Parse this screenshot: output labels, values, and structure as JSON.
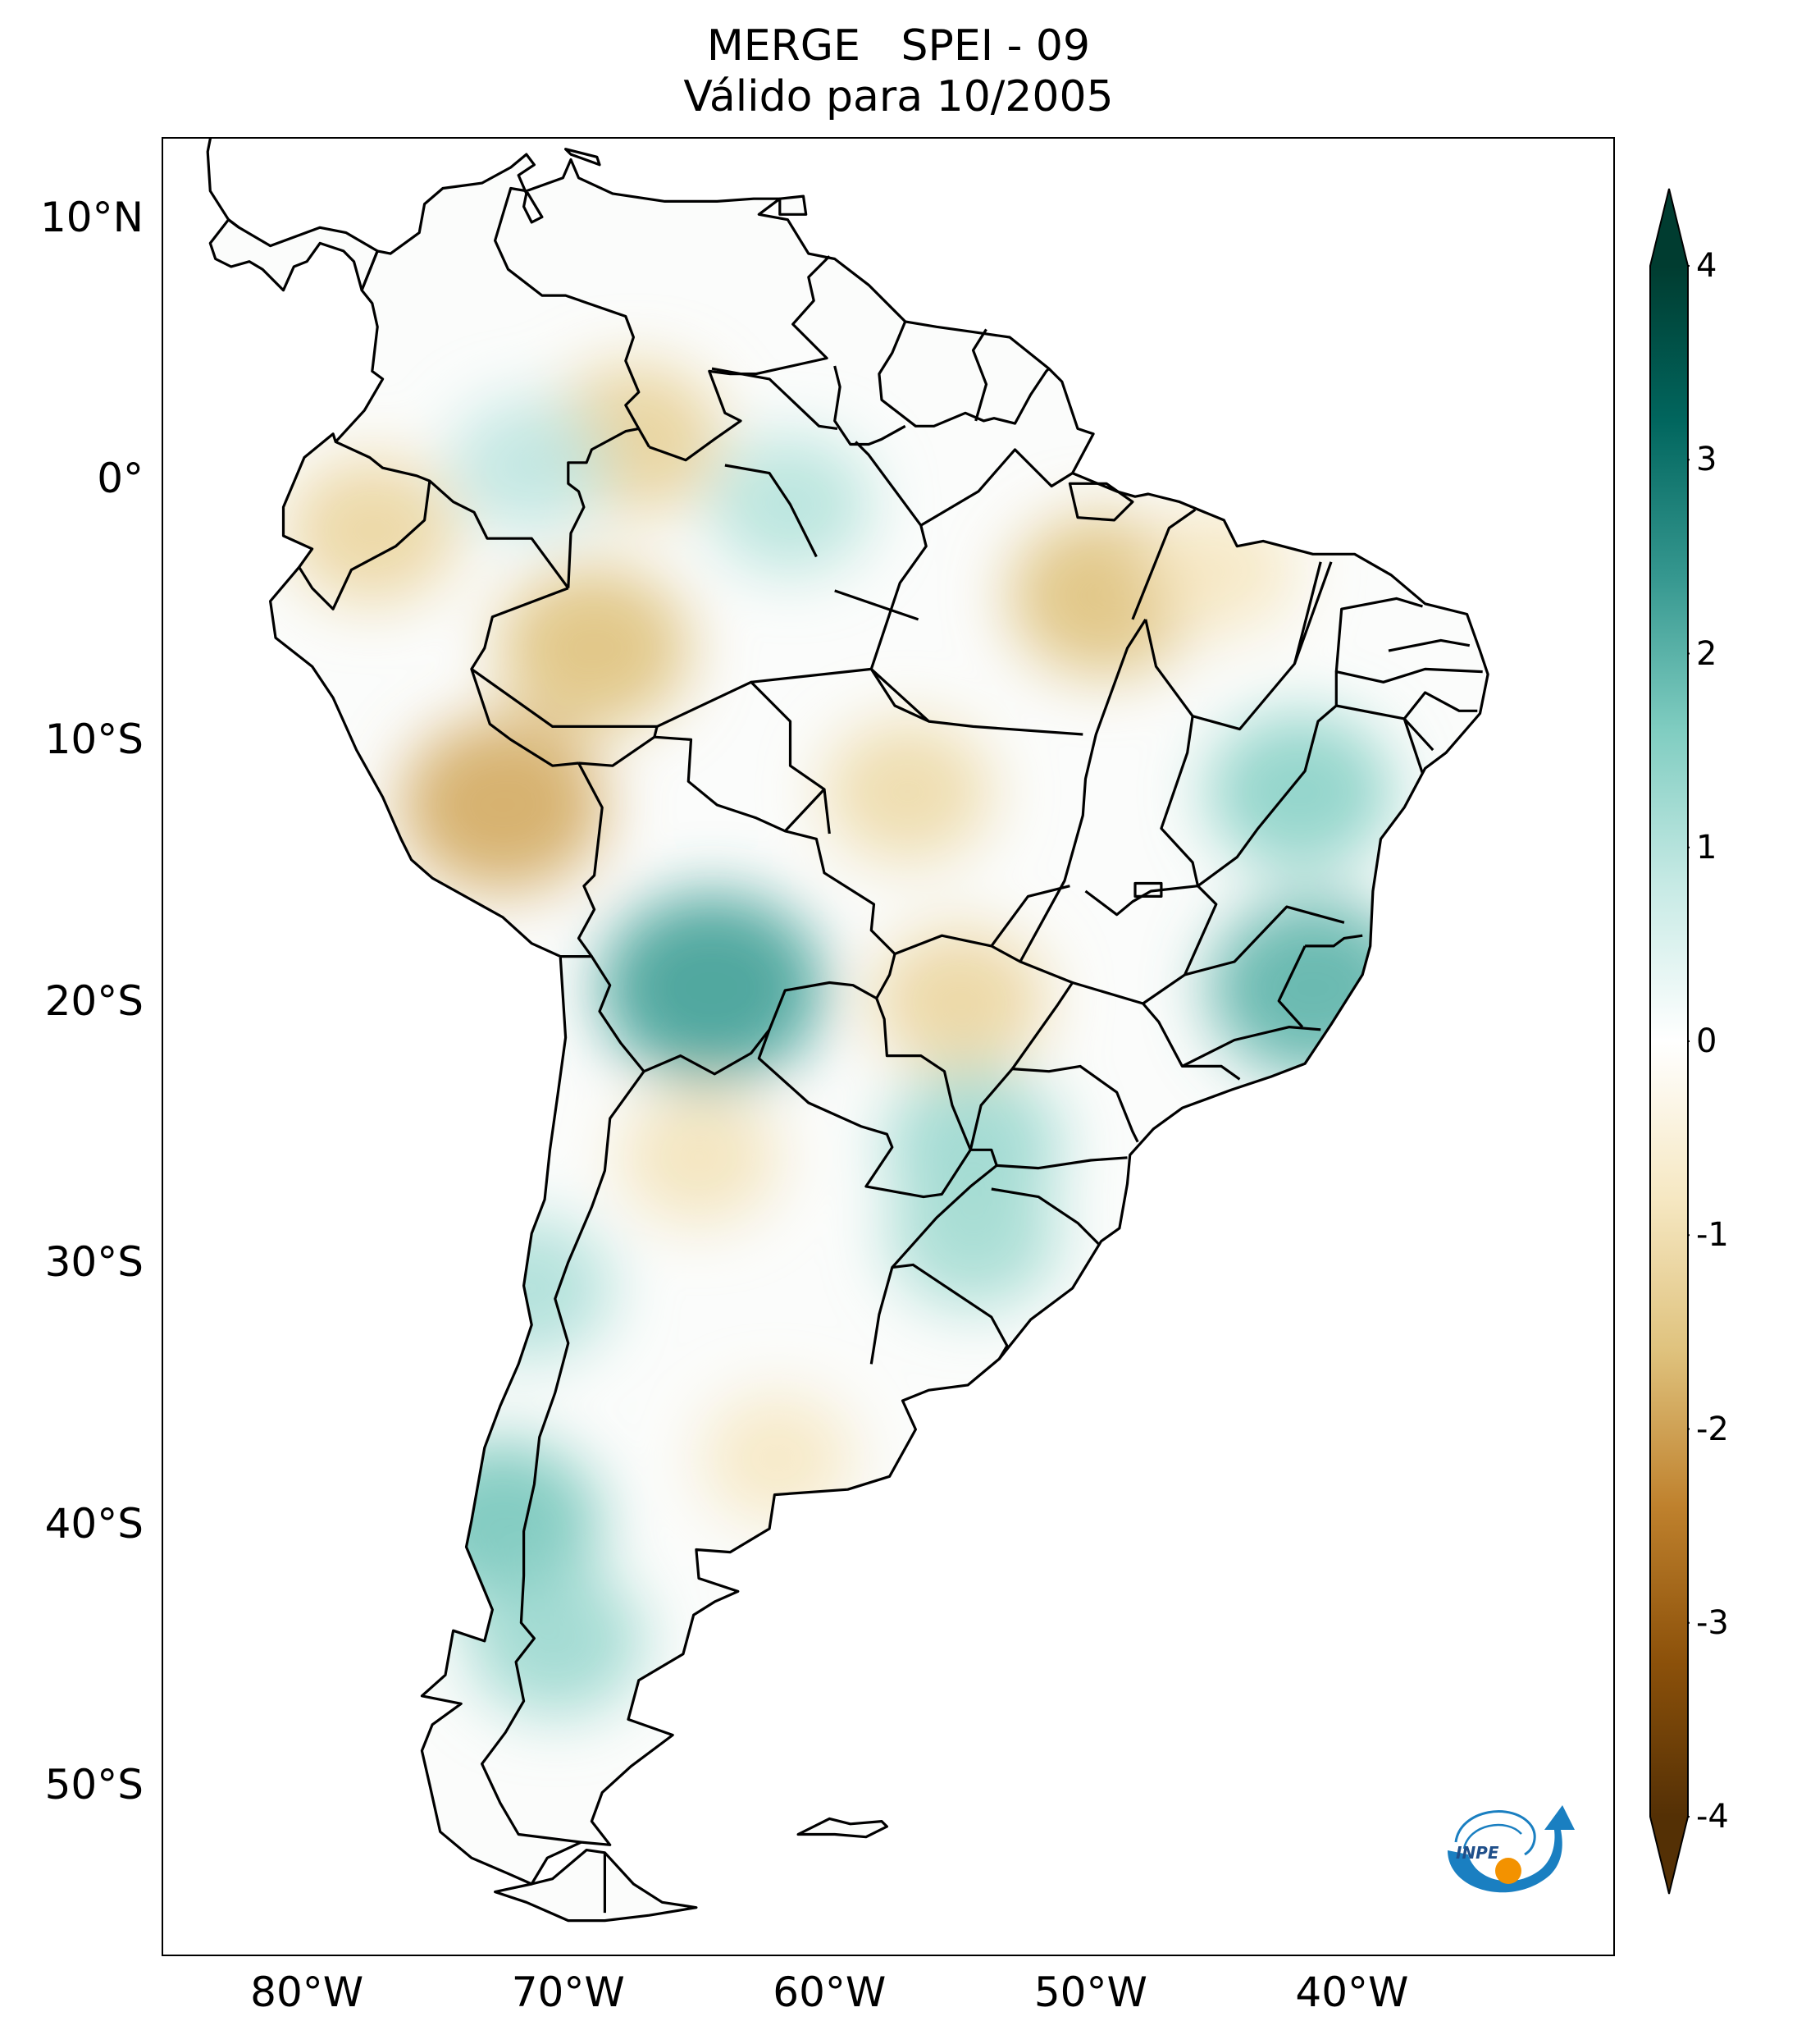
{
  "title": {
    "line1": "MERGE   SPEI - 09",
    "line2": "Válido para 10/2005"
  },
  "map": {
    "variable": "SPEI - 09",
    "source": "MERGE",
    "valid_date": "10/2005",
    "extent": {
      "lon_min": -85.5,
      "lon_max": -30.0,
      "lat_min": -56.5,
      "lat_max": 13.0
    },
    "colormap": "BrBG",
    "value_range": [
      -4,
      4
    ],
    "lat_ticks": [
      {
        "value": 10,
        "label": "10°N"
      },
      {
        "value": 0,
        "label": "0°"
      },
      {
        "value": -10,
        "label": "10°S"
      },
      {
        "value": -20,
        "label": "20°S"
      },
      {
        "value": -30,
        "label": "30°S"
      },
      {
        "value": -40,
        "label": "40°S"
      },
      {
        "value": -50,
        "label": "50°S"
      }
    ],
    "lon_ticks": [
      {
        "value": -80,
        "label": "80°W"
      },
      {
        "value": -70,
        "label": "70°W"
      },
      {
        "value": -60,
        "label": "60°W"
      },
      {
        "value": -50,
        "label": "50°W"
      },
      {
        "value": -40,
        "label": "40°W"
      }
    ],
    "dry_regions": [
      {
        "lon": -69.0,
        "lat": -6.5,
        "value": -1.6
      },
      {
        "lon": -72.5,
        "lat": -12.5,
        "value": -1.9
      },
      {
        "lon": -77.5,
        "lat": -2.0,
        "value": -1.2
      },
      {
        "lon": -49.5,
        "lat": -4.5,
        "value": -1.6
      },
      {
        "lon": -57.0,
        "lat": -12.0,
        "value": -1.1
      },
      {
        "lon": -55.0,
        "lat": -20.0,
        "value": -1.2
      },
      {
        "lon": -67.5,
        "lat": 1.5,
        "value": -1.3
      },
      {
        "lon": -65.0,
        "lat": -26.0,
        "value": -0.9
      },
      {
        "lon": -62.0,
        "lat": -37.5,
        "value": -0.8
      },
      {
        "lon": -45.0,
        "lat": -3.5,
        "value": -0.8
      }
    ],
    "wet_regions": [
      {
        "lon": -64.5,
        "lat": -19.5,
        "value": 2.3
      },
      {
        "lon": -41.5,
        "lat": -19.5,
        "value": 2.0
      },
      {
        "lon": -42.0,
        "lat": -12.0,
        "value": 1.5
      },
      {
        "lon": -72.5,
        "lat": -40.0,
        "value": 1.7
      },
      {
        "lon": -70.5,
        "lat": -44.5,
        "value": 1.3
      },
      {
        "lon": -71.5,
        "lat": -31.0,
        "value": 1.1
      },
      {
        "lon": -54.5,
        "lat": -25.5,
        "value": 1.3
      },
      {
        "lon": -54.5,
        "lat": -29.0,
        "value": 1.2
      },
      {
        "lon": -61.5,
        "lat": -1.0,
        "value": 1.0
      },
      {
        "lon": -71.5,
        "lat": 0.5,
        "value": 0.9
      }
    ]
  },
  "colorbar": {
    "min": -4,
    "max": 4,
    "ticks": [
      {
        "value": 4,
        "label": "4"
      },
      {
        "value": 3,
        "label": "3"
      },
      {
        "value": 2,
        "label": "2"
      },
      {
        "value": 1,
        "label": "1"
      },
      {
        "value": 0,
        "label": "0"
      },
      {
        "value": -1,
        "label": "-1"
      },
      {
        "value": -2,
        "label": "-2"
      },
      {
        "value": -3,
        "label": "-3"
      },
      {
        "value": -4,
        "label": "-4"
      }
    ],
    "extend": "both",
    "colors": [
      "#543005",
      "#8c510a",
      "#bf812d",
      "#dfc27d",
      "#f6e8c3",
      "#ffffff",
      "#c7eae5",
      "#80cdc1",
      "#35978f",
      "#01665e",
      "#003c30"
    ]
  },
  "logo": {
    "text": "INPE",
    "icon": "inpe-logo-icon",
    "orbit_color": "#1a7fc1",
    "dot_color": "#f39200"
  }
}
